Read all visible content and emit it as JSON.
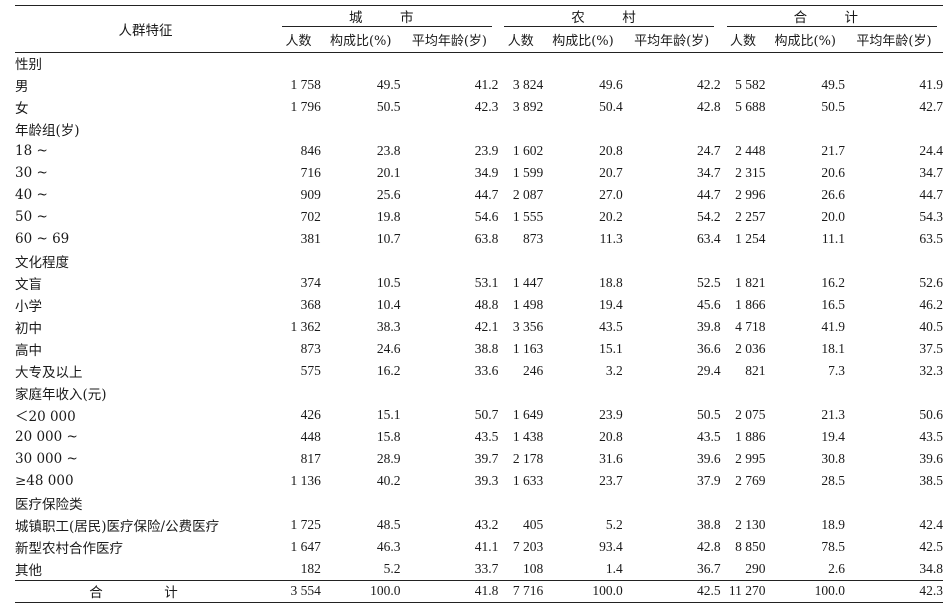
{
  "header": {
    "corner": "人群特征",
    "groups": [
      "城　市",
      "农　村",
      "合　计"
    ],
    "subcols": [
      "人数",
      "构成比(%)",
      "平均年龄(岁)"
    ]
  },
  "rows": [
    {
      "label": "性别",
      "section": true
    },
    {
      "label": "男",
      "values": [
        "1 758",
        "49.5",
        "41.2",
        "3 824",
        "49.6",
        "42.2",
        "5 582",
        "49.5",
        "41.9"
      ]
    },
    {
      "label": "女",
      "values": [
        "1 796",
        "50.5",
        "42.3",
        "3 892",
        "50.4",
        "42.8",
        "5 688",
        "50.5",
        "42.7"
      ]
    },
    {
      "label": "年龄组(岁)",
      "section": true
    },
    {
      "label": "18 ~",
      "values": [
        "846",
        "23.8",
        "23.9",
        "1 602",
        "20.8",
        "24.7",
        "2 448",
        "21.7",
        "24.4"
      ]
    },
    {
      "label": "30 ~",
      "values": [
        "716",
        "20.1",
        "34.9",
        "1 599",
        "20.7",
        "34.7",
        "2 315",
        "20.6",
        "34.7"
      ]
    },
    {
      "label": "40 ~",
      "values": [
        "909",
        "25.6",
        "44.7",
        "2 087",
        "27.0",
        "44.7",
        "2 996",
        "26.6",
        "44.7"
      ]
    },
    {
      "label": "50 ~",
      "values": [
        "702",
        "19.8",
        "54.6",
        "1 555",
        "20.2",
        "54.2",
        "2 257",
        "20.0",
        "54.3"
      ]
    },
    {
      "label": "60 ~ 69",
      "values": [
        "381",
        "10.7",
        "63.8",
        "873",
        "11.3",
        "63.4",
        "1 254",
        "11.1",
        "63.5"
      ]
    },
    {
      "label": "文化程度",
      "section": true
    },
    {
      "label": "文盲",
      "values": [
        "374",
        "10.5",
        "53.1",
        "1 447",
        "18.8",
        "52.5",
        "1 821",
        "16.2",
        "52.6"
      ]
    },
    {
      "label": "小学",
      "values": [
        "368",
        "10.4",
        "48.8",
        "1 498",
        "19.4",
        "45.6",
        "1 866",
        "16.5",
        "46.2"
      ]
    },
    {
      "label": "初中",
      "values": [
        "1 362",
        "38.3",
        "42.1",
        "3 356",
        "43.5",
        "39.8",
        "4 718",
        "41.9",
        "40.5"
      ]
    },
    {
      "label": "高中",
      "values": [
        "873",
        "24.6",
        "38.8",
        "1 163",
        "15.1",
        "36.6",
        "2 036",
        "18.1",
        "37.5"
      ]
    },
    {
      "label": "大专及以上",
      "values": [
        "575",
        "16.2",
        "33.6",
        "246",
        "3.2",
        "29.4",
        "821",
        "7.3",
        "32.3"
      ]
    },
    {
      "label": "家庭年收入(元)",
      "section": true
    },
    {
      "label": "＜20 000",
      "values": [
        "426",
        "15.1",
        "50.7",
        "1 649",
        "23.9",
        "50.5",
        "2 075",
        "21.3",
        "50.6"
      ]
    },
    {
      "label": "20 000 ~",
      "values": [
        "448",
        "15.8",
        "43.5",
        "1 438",
        "20.8",
        "43.5",
        "1 886",
        "19.4",
        "43.5"
      ]
    },
    {
      "label": "30 000 ~",
      "values": [
        "817",
        "28.9",
        "39.7",
        "2 178",
        "31.6",
        "39.6",
        "2 995",
        "30.8",
        "39.6"
      ]
    },
    {
      "label": "≥48 000",
      "values": [
        "1 136",
        "40.2",
        "39.3",
        "1 633",
        "23.7",
        "37.9",
        "2 769",
        "28.5",
        "38.5"
      ]
    },
    {
      "label": "医疗保险类",
      "section": true
    },
    {
      "label": "城镇职工(居民)医疗保险/公费医疗",
      "values": [
        "1 725",
        "48.5",
        "43.2",
        "405",
        "5.2",
        "38.8",
        "2 130",
        "18.9",
        "42.4"
      ]
    },
    {
      "label": "新型农村合作医疗",
      "values": [
        "1 647",
        "46.3",
        "41.1",
        "7 203",
        "93.4",
        "42.8",
        "8 850",
        "78.5",
        "42.5"
      ]
    },
    {
      "label": "其他",
      "values": [
        "182",
        "5.2",
        "33.7",
        "108",
        "1.4",
        "36.7",
        "290",
        "2.6",
        "34.8"
      ]
    },
    {
      "label": "合　计",
      "total": true,
      "values": [
        "3 554",
        "100.0",
        "41.8",
        "7 716",
        "100.0",
        "42.5",
        "11 270",
        "100.0",
        "42.3"
      ]
    }
  ]
}
